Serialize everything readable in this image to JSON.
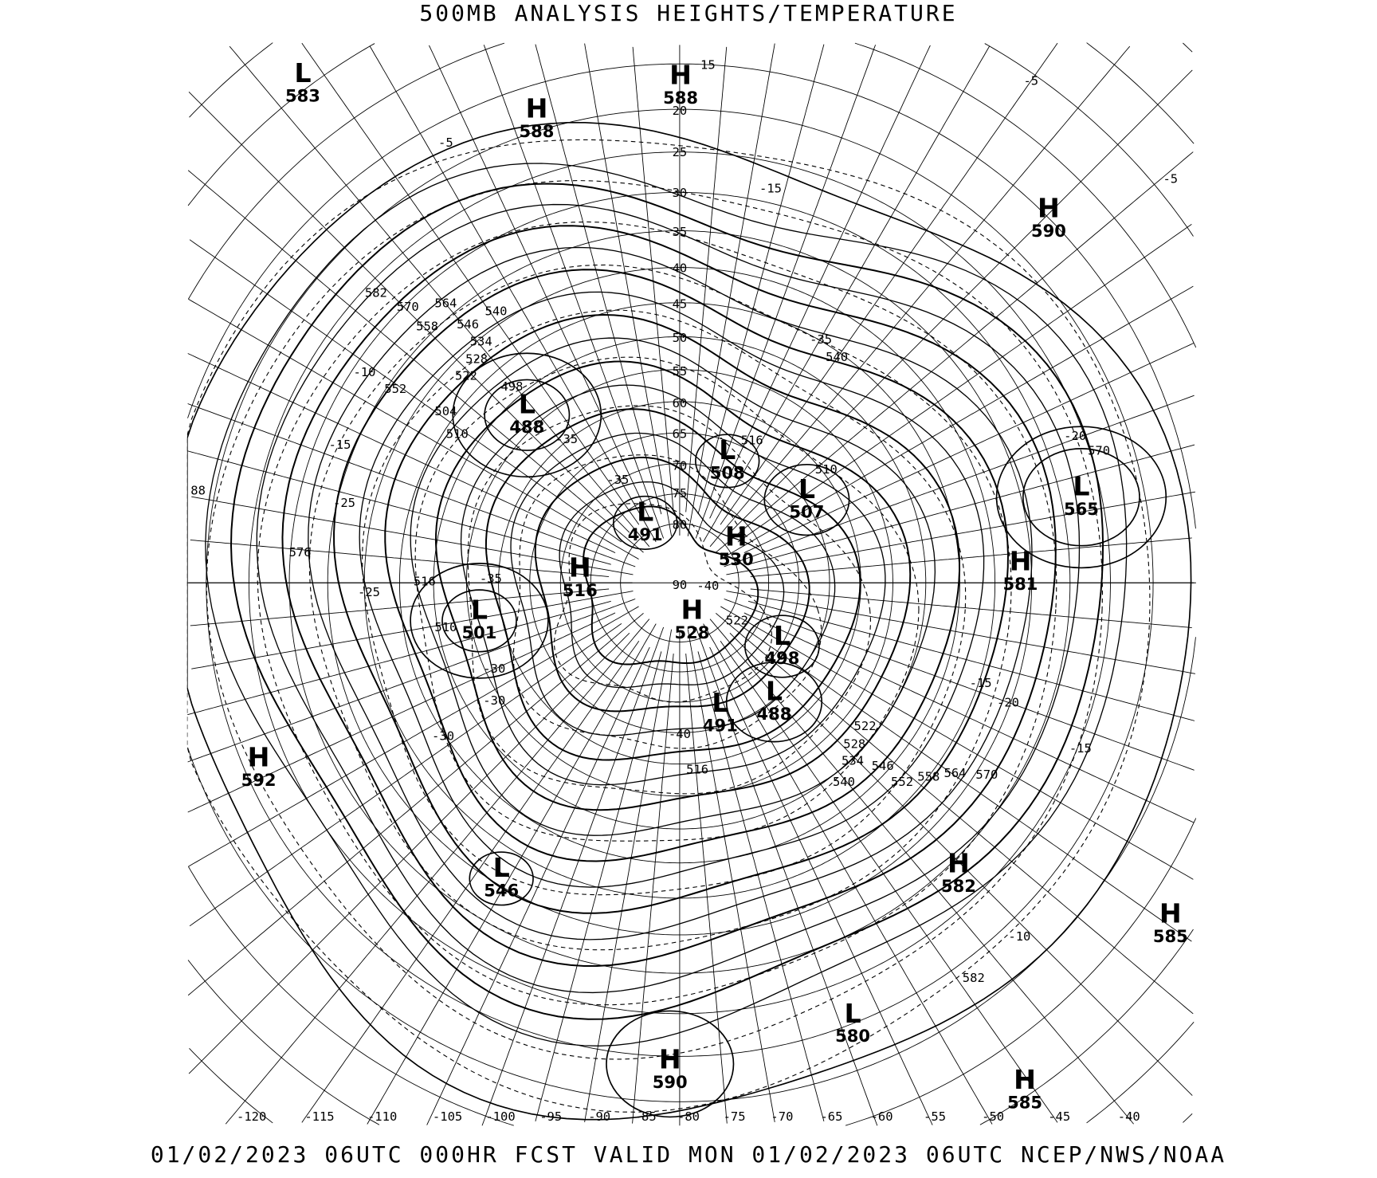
{
  "header": {
    "title": "500MB ANALYSIS  HEIGHTS/TEMPERATURE"
  },
  "footer": {
    "text": "01/02/2023 06UTC 000HR FCST VALID MON 01/02/2023 06UTC  NCEP/NWS/NOAA"
  },
  "map": {
    "projection": "polar stereographic",
    "line_color": "#000000",
    "background": "#ffffff",
    "longitude_labels": [
      "-120",
      "-115",
      "-110",
      "-105",
      "-100",
      "-95",
      "-90",
      "-85",
      "-80",
      "-75",
      "-70",
      "-65",
      "-60",
      "-55",
      "-50",
      "-45",
      "-40"
    ],
    "latitude_labels": [
      "15",
      "20",
      "25",
      "30",
      "35",
      "40",
      "45",
      "50",
      "55",
      "60",
      "65",
      "70",
      "75",
      "80",
      "90"
    ],
    "edge_labels": [
      "88"
    ],
    "pressure_systems": [
      {
        "type": "L",
        "value": "583"
      },
      {
        "type": "H",
        "value": "588"
      },
      {
        "type": "H",
        "value": "588"
      },
      {
        "type": "H",
        "value": "590"
      },
      {
        "type": "L",
        "value": "488"
      },
      {
        "type": "L",
        "value": "508"
      },
      {
        "type": "L",
        "value": "507"
      },
      {
        "type": "L",
        "value": "565"
      },
      {
        "type": "L",
        "value": "491"
      },
      {
        "type": "H",
        "value": "530"
      },
      {
        "type": "H",
        "value": "516"
      },
      {
        "type": "H",
        "value": "581"
      },
      {
        "type": "L",
        "value": "501"
      },
      {
        "type": "H",
        "value": "528"
      },
      {
        "type": "L",
        "value": "498"
      },
      {
        "type": "L",
        "value": "488"
      },
      {
        "type": "L",
        "value": "491"
      },
      {
        "type": "H",
        "value": "592"
      },
      {
        "type": "L",
        "value": "546"
      },
      {
        "type": "H",
        "value": "582"
      },
      {
        "type": "H",
        "value": "585"
      },
      {
        "type": "L",
        "value": "580"
      },
      {
        "type": "H",
        "value": "590"
      },
      {
        "type": "H",
        "value": "585"
      }
    ],
    "height_contour_labels": [
      "582",
      "570",
      "564",
      "558",
      "552",
      "546",
      "540",
      "534",
      "528",
      "522",
      "516",
      "510",
      "504",
      "498",
      "576",
      "570",
      "582",
      "540",
      "510",
      "516",
      "510",
      "522",
      "528",
      "534",
      "540",
      "546",
      "552",
      "558",
      "564",
      "570",
      "516",
      "522"
    ],
    "temperature_contour_labels": [
      "-5",
      "-5",
      "-5",
      "-15",
      "-10",
      "-15",
      "-20",
      "-25",
      "-30",
      "-30",
      "-35",
      "-35",
      "-40",
      "-40",
      "-35",
      "-20",
      "-15",
      "-10",
      "-25",
      "-35",
      "-30",
      "-15"
    ]
  }
}
